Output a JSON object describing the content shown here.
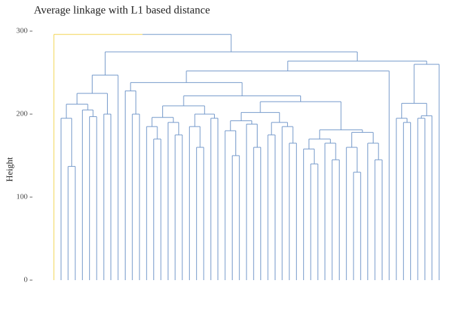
{
  "chart_data": {
    "type": "dendrogram",
    "title": "Average linkage with L1 based distance",
    "y_label": "Height",
    "ylim": [
      0,
      300
    ],
    "yticks": [
      0,
      100,
      200,
      300
    ],
    "branch_color": "#6f95c8",
    "highlight_color": "#f2d34a",
    "tree": [
      296,
      0,
      [
        275,
        [
          247,
          [
            225,
            [
              212,
              [
                195,
                0,
                [
                  137,
                  0,
                  0
                ]
              ],
              [
                205,
                0,
                [
                  197,
                  0,
                  0
                ]
              ]
            ],
            [
              200,
              0,
              0
            ]
          ],
          0
        ],
        [
          264,
          [
            252,
            [
              238,
              [
                228,
                0,
                [
                  200,
                  0,
                  0
                ]
              ],
              [
                222,
                [
                  210,
                  [
                    196,
                    [
                      185,
                      0,
                      [
                        170,
                        0,
                        0
                      ]
                    ],
                    [
                      190,
                      0,
                      [
                        175,
                        0,
                        0
                      ]
                    ]
                  ],
                  [
                    200,
                    [
                      185,
                      0,
                      [
                        160,
                        0,
                        0
                      ]
                    ],
                    [
                      195,
                      0,
                      0
                    ]
                  ]
                ],
                [
                  215,
                  [
                    202,
                    [
                      192,
                      [
                        180,
                        0,
                        [
                          150,
                          0,
                          0
                        ]
                      ],
                      [
                        188,
                        0,
                        [
                          160,
                          0,
                          0
                        ]
                      ]
                    ],
                    [
                      190,
                      [
                        175,
                        0,
                        0
                      ],
                      [
                        185,
                        0,
                        [
                          165,
                          0,
                          0
                        ]
                      ]
                    ]
                  ],
                  [
                    181,
                    [
                      170,
                      [
                        158,
                        0,
                        [
                          140,
                          0,
                          0
                        ]
                      ],
                      [
                        165,
                        0,
                        [
                          145,
                          0,
                          0
                        ]
                      ]
                    ],
                    [
                      178,
                      [
                        160,
                        0,
                        [
                          130,
                          0,
                          0
                        ]
                      ],
                      [
                        165,
                        0,
                        [
                          145,
                          0,
                          0
                        ]
                      ]
                    ]
                  ]
                ]
              ]
            ],
            0
          ],
          [
            260,
            [
              213,
              [
                195,
                0,
                [
                  190,
                  0,
                  0
                ]
              ],
              [
                198,
                [
                  195,
                  0,
                  0
                ],
                0
              ]
            ],
            0
          ]
        ]
      ]
    ]
  }
}
